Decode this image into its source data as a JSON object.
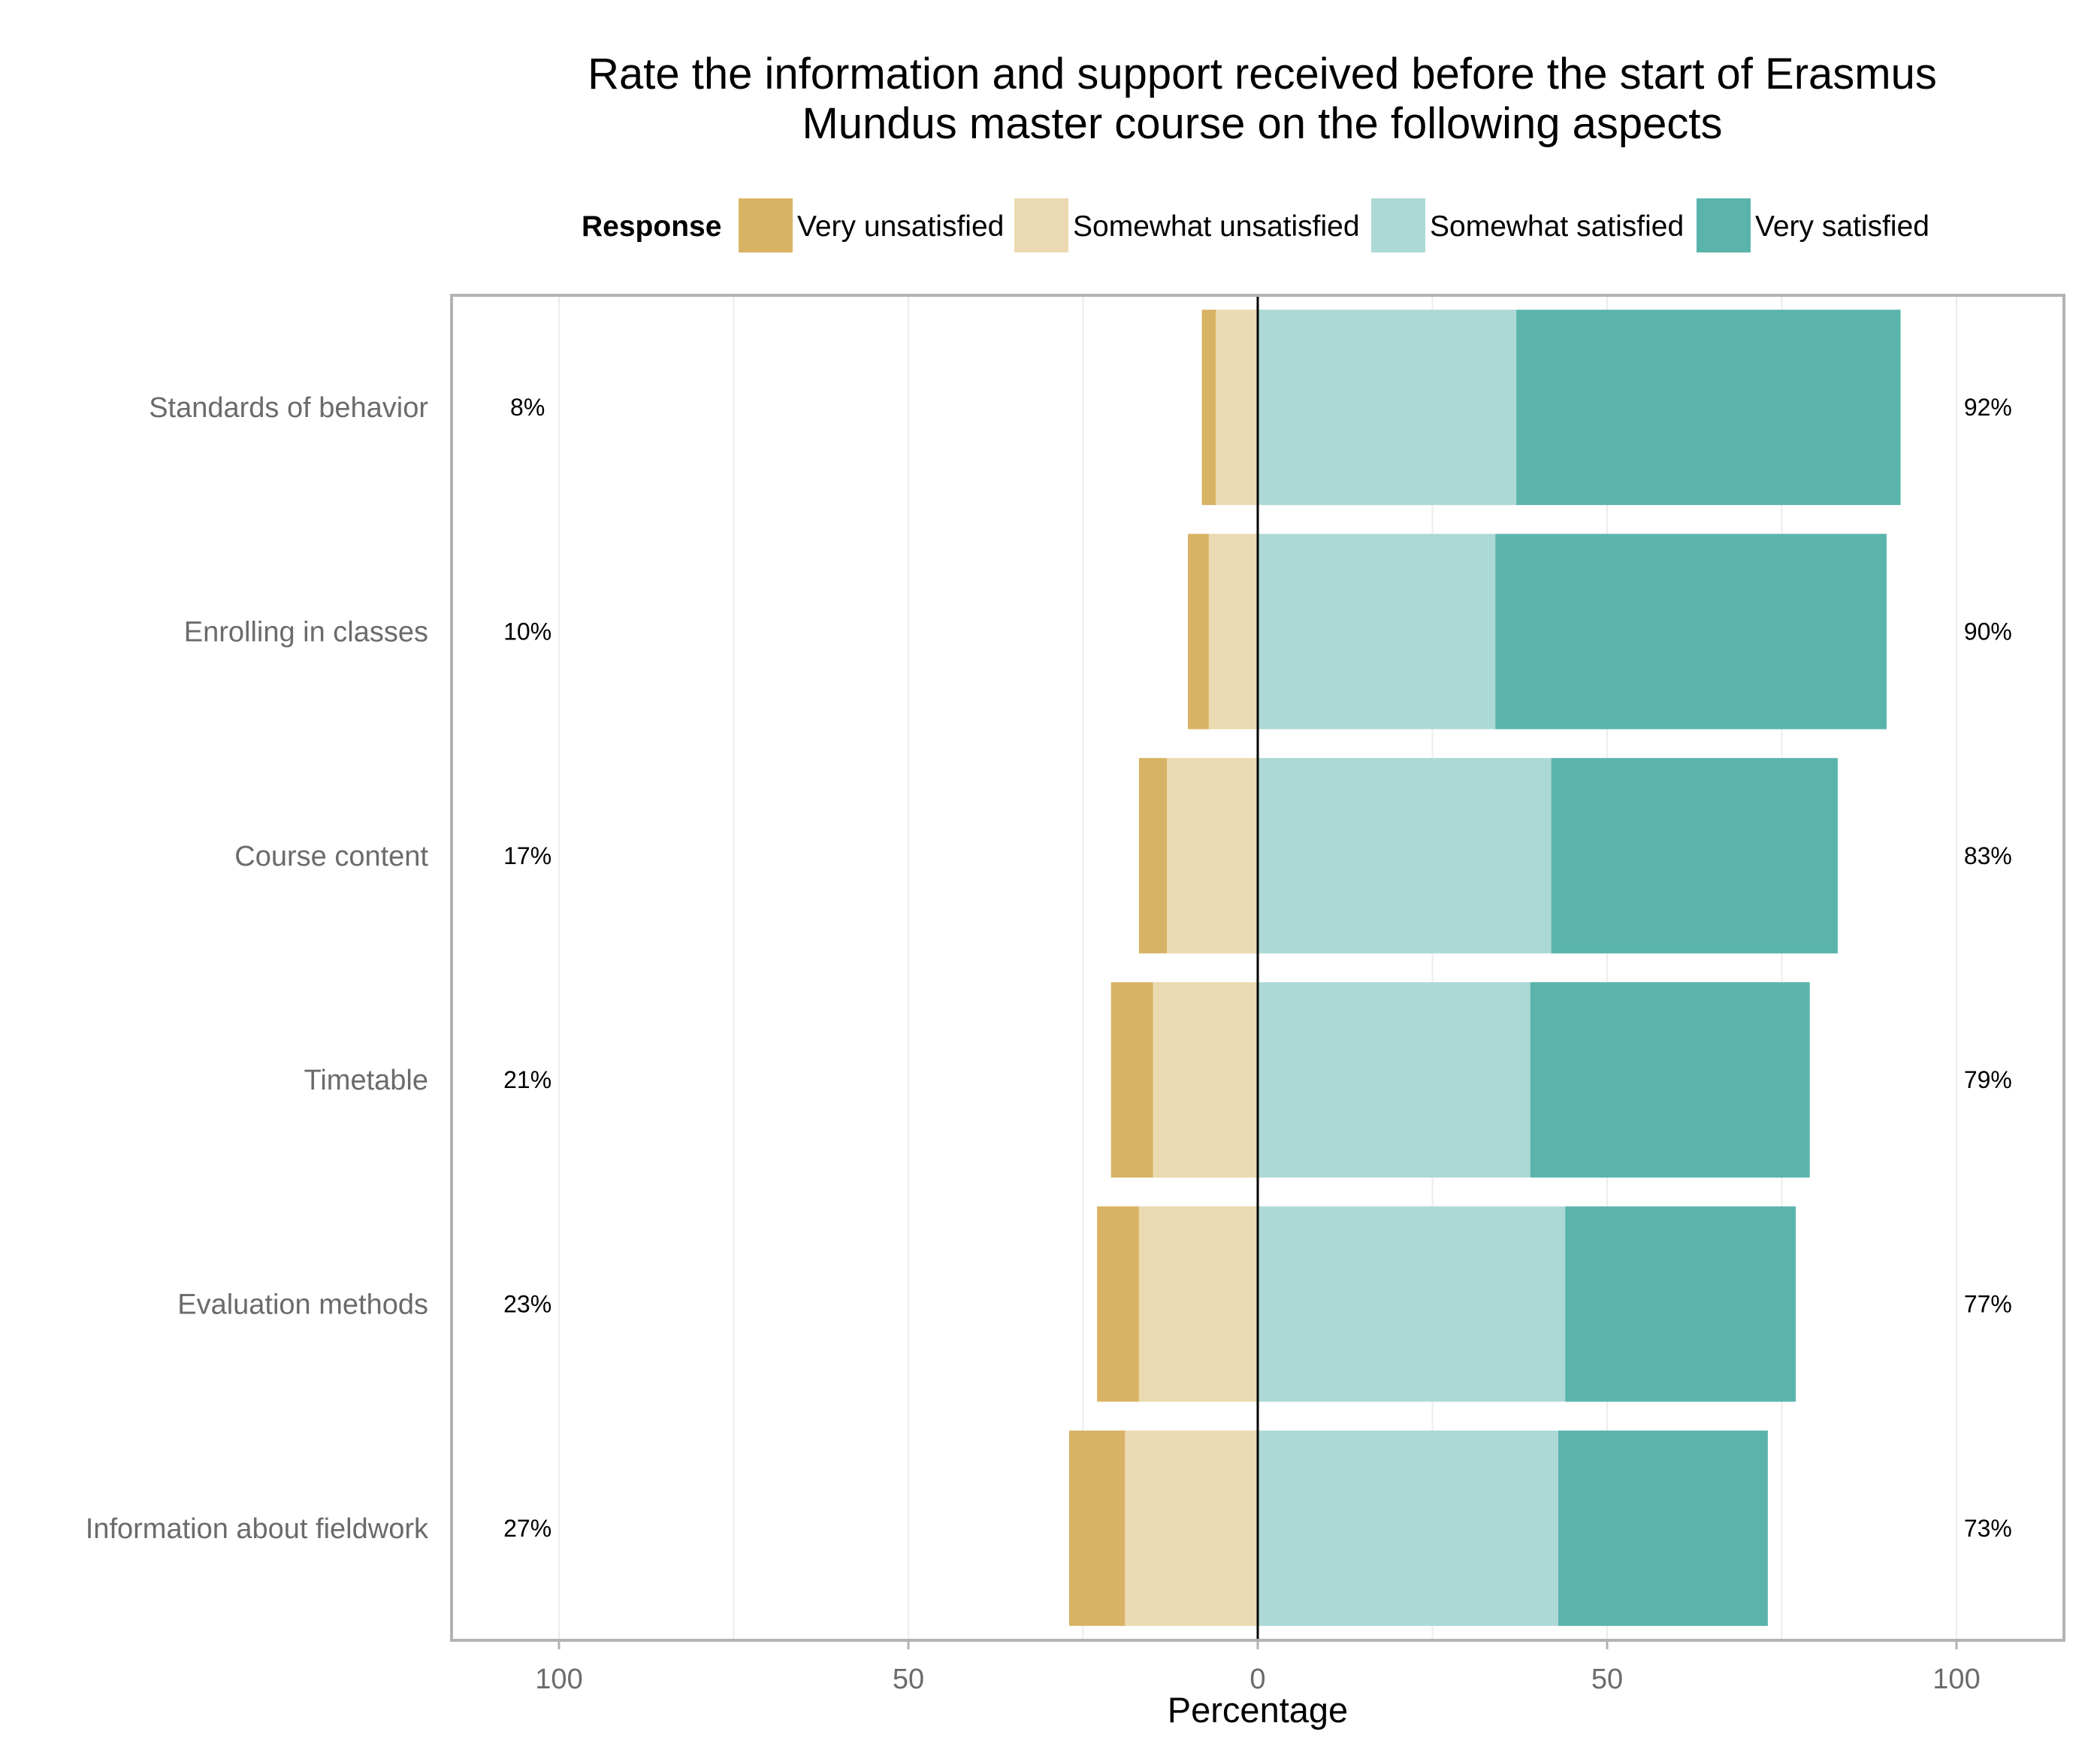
{
  "chart_data": {
    "type": "bar",
    "orientation": "horizontal-diverging",
    "title_lines": [
      "Rate the information and support received before the start of Erasmus",
      "Mundus master course on the following aspects"
    ],
    "legend": {
      "title": "Response",
      "placement": "top",
      "entries": [
        "Very unsatisfied",
        "Somewhat unsatisfied",
        "Somewhat satisfied",
        "Very satisfied"
      ]
    },
    "xlabel": "Percentage",
    "xlim": [
      -115,
      115
    ],
    "xticks": [
      -100,
      -50,
      0,
      50,
      100
    ],
    "xtick_labels": [
      "100",
      "50",
      "0",
      "50",
      "100"
    ],
    "grid": true,
    "categories": [
      "Standards of behavior",
      "Enrolling in classes",
      "Course content",
      "Timetable",
      "Evaluation methods",
      "Information about fieldwork"
    ],
    "series": [
      {
        "name": "Very unsatisfied",
        "color": "#d8b365",
        "side": "negative",
        "values": [
          2,
          3,
          4,
          6,
          6,
          8
        ]
      },
      {
        "name": "Somewhat unsatisfied",
        "color": "#ebdab1",
        "side": "negative",
        "values": [
          6,
          7,
          13,
          15,
          17,
          19
        ]
      },
      {
        "name": "Somewhat satisfied",
        "color": "#acd9d5",
        "side": "positive",
        "values": [
          37,
          34,
          42,
          39,
          44,
          43
        ]
      },
      {
        "name": "Very satisfied",
        "color": "#5ab4ac",
        "side": "positive",
        "values": [
          55,
          56,
          41,
          40,
          33,
          30
        ]
      }
    ],
    "left_labels": [
      "8%",
      "10%",
      "17%",
      "21%",
      "23%",
      "27%"
    ],
    "right_labels": [
      "92%",
      "90%",
      "83%",
      "79%",
      "77%",
      "73%"
    ]
  }
}
